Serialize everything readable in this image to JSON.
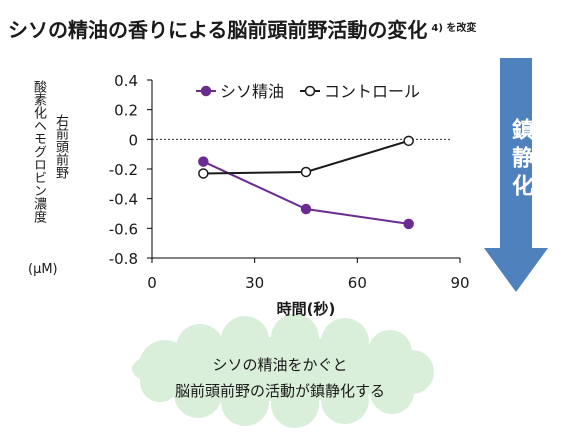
{
  "title": "シソの精油の香りによる脳前頭前野活動の変化",
  "title_note": "4) を改変",
  "chart_data": {
    "type": "line",
    "xlabel": "時間(秒)",
    "ylabel_parts": [
      "右前頭前野",
      "酸素化ヘモグロビン濃度"
    ],
    "yunit": "(μM)",
    "xlim": [
      0,
      90
    ],
    "ylim": [
      -0.8,
      0.4
    ],
    "xticks": [
      0,
      30,
      60,
      90
    ],
    "yticks": [
      0.4,
      0.2,
      0,
      -0.2,
      -0.4,
      -0.6,
      -0.8
    ],
    "ytick_labels": [
      "0.4",
      "0.2",
      "0",
      "-0.2",
      "-0.4",
      "-0.6",
      "-0.8"
    ],
    "reference_line": 0,
    "legend_position": "top",
    "series": [
      {
        "name": "シソ精油",
        "color": "#6a2c91",
        "marker": "filled",
        "x": [
          15,
          45,
          75
        ],
        "y": [
          -0.15,
          -0.47,
          -0.57
        ]
      },
      {
        "name": "コントロール",
        "color": "#1a1a1a",
        "marker": "open",
        "x": [
          15,
          45,
          75
        ],
        "y": [
          -0.23,
          -0.22,
          -0.01
        ]
      }
    ]
  },
  "arrow_label": "鎮静化",
  "arrow_color": "#4f81bd",
  "cloud_lines": [
    "シソの精油をかぐと",
    "脳前頭前野の活動が鎮静化する"
  ],
  "cloud_color": "#d9efd9"
}
